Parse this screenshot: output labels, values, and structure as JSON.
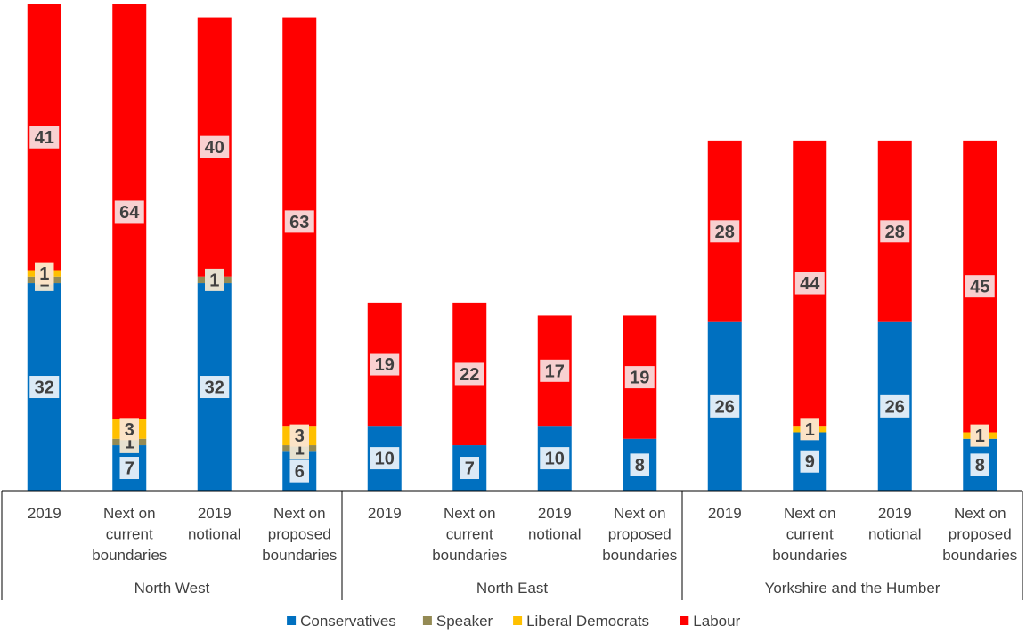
{
  "chart_data": {
    "type": "bar",
    "stacked": true,
    "groups": [
      {
        "name": "North West",
        "categories": [
          "2019",
          "Next on current boundaries",
          "2019 notional",
          "Next on proposed boundaries"
        ]
      },
      {
        "name": "North East",
        "categories": [
          "2019",
          "Next on current boundaries",
          "2019 notional",
          "Next on proposed boundaries"
        ]
      },
      {
        "name": "Yorkshire and the Humber",
        "categories": [
          "2019",
          "Next on current boundaries",
          "2019 notional",
          "Next on proposed boundaries"
        ]
      }
    ],
    "series": [
      {
        "name": "Conservatives",
        "color": "#0070C0",
        "values": [
          32,
          7,
          32,
          6,
          10,
          7,
          10,
          8,
          26,
          9,
          26,
          8
        ]
      },
      {
        "name": "Speaker",
        "color": "#948A54",
        "values": [
          1,
          1,
          1,
          1,
          0,
          0,
          0,
          0,
          0,
          0,
          0,
          0
        ]
      },
      {
        "name": "Liberal Democrats",
        "color": "#FFC000",
        "values": [
          1,
          3,
          0,
          3,
          0,
          0,
          0,
          0,
          0,
          1,
          0,
          1
        ]
      },
      {
        "name": "Labour",
        "color": "#FF0000",
        "values": [
          41,
          64,
          40,
          63,
          19,
          22,
          17,
          19,
          28,
          44,
          28,
          45
        ]
      }
    ],
    "ylim": [
      0,
      75
    ],
    "legend_position": "bottom",
    "grid": false
  }
}
